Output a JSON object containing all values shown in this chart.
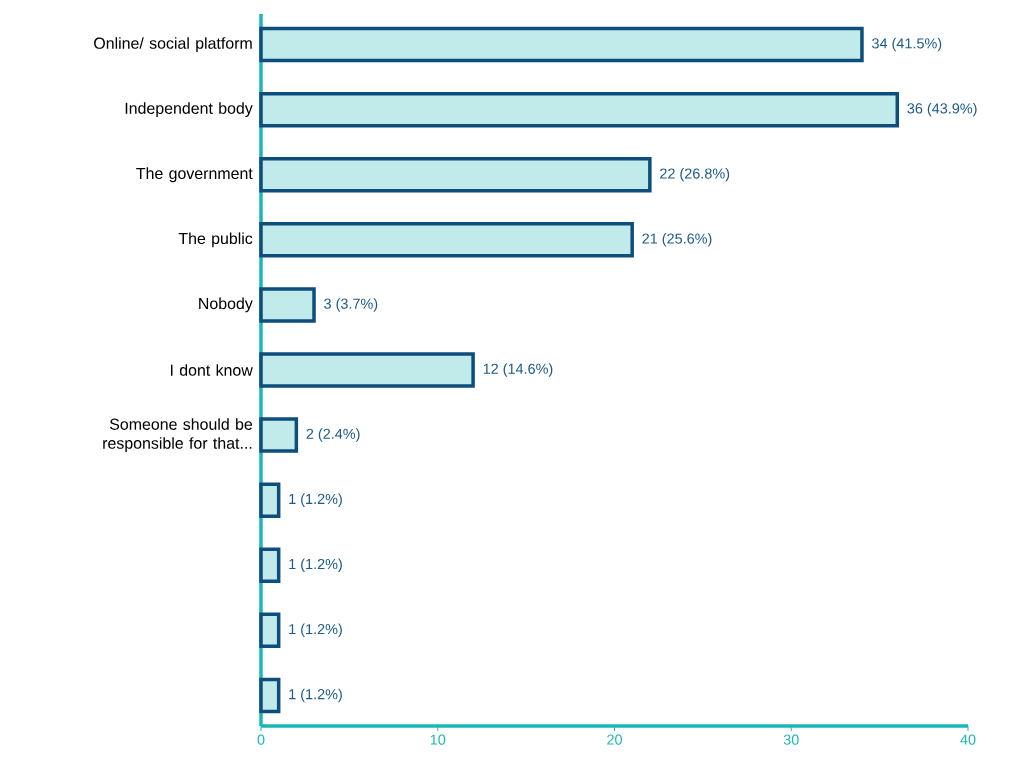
{
  "chart_data": {
    "type": "bar",
    "orientation": "horizontal",
    "categories": [
      "Online/ social platform",
      "Independent body",
      "The government",
      "The public",
      "Nobody",
      "I dont know",
      "Someone should be responsible for that...",
      null,
      null,
      null,
      null
    ],
    "values": [
      34,
      36,
      22,
      21,
      3,
      12,
      2,
      1,
      1,
      1,
      1
    ],
    "value_labels": [
      "34 (41.5%)",
      "36 (43.9%)",
      "22 (26.8%)",
      "21 (25.6%)",
      "3 (3.7%)",
      "12 (14.6%)",
      "2 (2.4%)",
      "1 (1.2%)",
      "1 (1.2%)",
      "1 (1.2%)",
      "1 (1.2%)"
    ],
    "color": "#0d4e7d",
    "xlim": [
      0,
      40
    ],
    "xticks": [
      0,
      10,
      20,
      30,
      40
    ]
  }
}
